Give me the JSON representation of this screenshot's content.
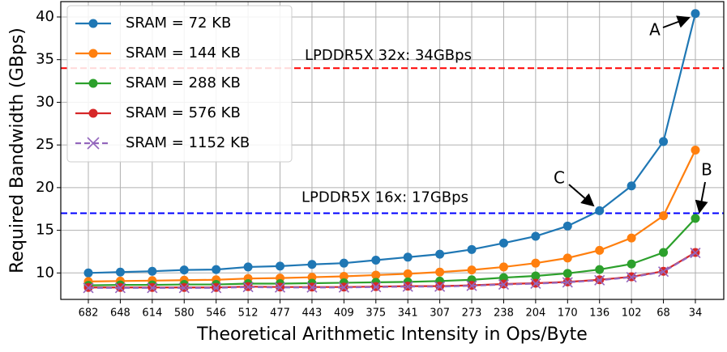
{
  "chart_data": {
    "type": "line",
    "x_label": "Theoretical Arithmetic Intensity in Ops/Byte",
    "y_label": "Required Bandwidth (GBps)",
    "categories": [
      "682",
      "648",
      "614",
      "580",
      "546",
      "512",
      "477",
      "443",
      "409",
      "375",
      "341",
      "307",
      "273",
      "238",
      "204",
      "170",
      "136",
      "102",
      "68",
      "34"
    ],
    "ylim": [
      6.9,
      41.8
    ],
    "yticks": [
      10,
      15,
      20,
      25,
      30,
      35,
      40
    ],
    "grid": true,
    "legend": "upper left",
    "series": [
      {
        "name": "SRAM = 72 KB",
        "color": "#1f77b4",
        "marker": "circle",
        "dash": false,
        "values": [
          10.0,
          10.1,
          10.2,
          10.35,
          10.4,
          10.7,
          10.8,
          11.0,
          11.15,
          11.5,
          11.85,
          12.2,
          12.75,
          13.5,
          14.3,
          15.5,
          17.3,
          20.2,
          25.4,
          40.4
        ]
      },
      {
        "name": "SRAM = 144 KB",
        "color": "#ff7f0e",
        "marker": "circle",
        "dash": false,
        "values": [
          9.0,
          9.05,
          9.1,
          9.15,
          9.2,
          9.35,
          9.4,
          9.5,
          9.6,
          9.75,
          9.9,
          10.1,
          10.35,
          10.7,
          11.15,
          11.75,
          12.65,
          14.1,
          16.7,
          24.4
        ]
      },
      {
        "name": "SRAM = 288 KB",
        "color": "#2ca02c",
        "marker": "circle",
        "dash": false,
        "values": [
          8.55,
          8.6,
          8.6,
          8.65,
          8.65,
          8.75,
          8.75,
          8.8,
          8.85,
          8.9,
          8.95,
          9.05,
          9.2,
          9.45,
          9.65,
          9.95,
          10.4,
          11.05,
          12.4,
          16.4
        ]
      },
      {
        "name": "SRAM = 576 KB",
        "color": "#d62728",
        "marker": "circle",
        "dash": false,
        "values": [
          8.3,
          8.3,
          8.3,
          8.3,
          8.3,
          8.4,
          8.35,
          8.35,
          8.35,
          8.4,
          8.45,
          8.45,
          8.55,
          8.7,
          8.8,
          8.95,
          9.2,
          9.55,
          10.2,
          12.4
        ]
      },
      {
        "name": "SRAM = 1152 KB",
        "color": "#9467bd",
        "marker": "x",
        "dash": true,
        "values": [
          8.25,
          8.25,
          8.25,
          8.25,
          8.25,
          8.35,
          8.3,
          8.3,
          8.3,
          8.35,
          8.4,
          8.4,
          8.5,
          8.65,
          8.75,
          8.9,
          9.15,
          9.5,
          10.15,
          12.35
        ]
      }
    ],
    "hlines": [
      {
        "value": 34,
        "label": "LPDDR5X 32x: 34GBps",
        "color": "#ff0000"
      },
      {
        "value": 17,
        "label": "LPDDR5X 16x: 17GBps",
        "color": "#0000ff"
      }
    ],
    "annotations": [
      "A",
      "B",
      "C"
    ]
  }
}
